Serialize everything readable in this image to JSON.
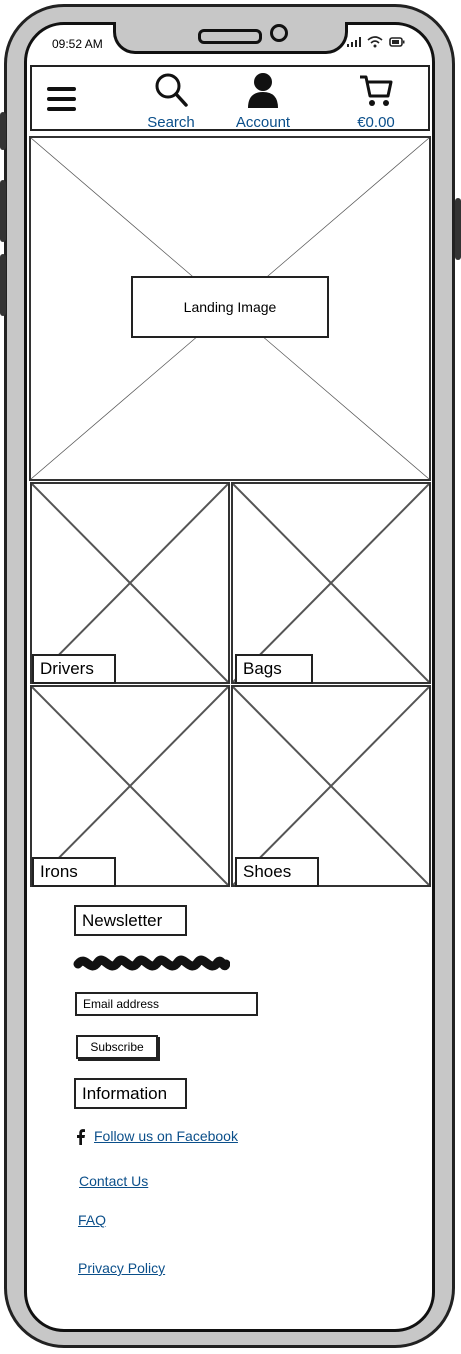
{
  "status": {
    "time": "09:52 AM"
  },
  "nav": {
    "search_label": "Search",
    "account_label": "Account",
    "cart_total": "€0.00"
  },
  "landing": {
    "label": "Landing Image"
  },
  "categories": [
    {
      "label": "Drivers"
    },
    {
      "label": "Bags"
    },
    {
      "label": "Irons"
    },
    {
      "label": "Shoes"
    }
  ],
  "newsletter": {
    "title": "Newsletter",
    "email_placeholder": "Email address",
    "subscribe_label": "Subscribe"
  },
  "information": {
    "title": "Information",
    "facebook_label": "Follow us on Facebook",
    "contact_label": "Contact Us",
    "faq_label": "FAQ",
    "privacy_label": "Privacy Policy"
  },
  "colors": {
    "link": "#0b4f8a",
    "frame": "#c7c7c7",
    "ink": "#222222"
  }
}
